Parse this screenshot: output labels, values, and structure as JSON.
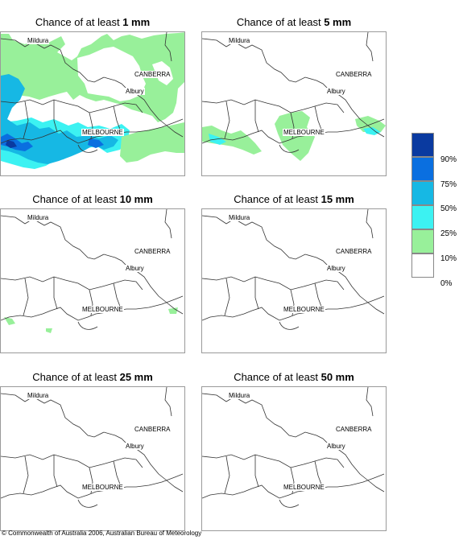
{
  "panels": [
    {
      "title_prefix": "Chance of at least ",
      "title_amount": "1 mm"
    },
    {
      "title_prefix": "Chance of at least ",
      "title_amount": "5 mm"
    },
    {
      "title_prefix": "Chance of at least ",
      "title_amount": "10 mm"
    },
    {
      "title_prefix": "Chance of at least ",
      "title_amount": "15 mm"
    },
    {
      "title_prefix": "Chance of at least ",
      "title_amount": "25 mm"
    },
    {
      "title_prefix": "Chance of at least ",
      "title_amount": "50 mm"
    }
  ],
  "places": {
    "mildura": "Mildura",
    "canberra": "CANBERRA",
    "albury": "Albury",
    "melbourne": "MELBOURNE"
  },
  "legend": {
    "labels": [
      "90%",
      "75%",
      "50%",
      "25%",
      "10%",
      "0%"
    ],
    "colors": [
      "#0a3aa0",
      "#0a6fe0",
      "#16b8e4",
      "#3cf2f2",
      "#98f09a",
      "#ffffff"
    ]
  },
  "footer": "© Commonwealth of Australia 2006, Australian Bureau of Meteorology"
}
